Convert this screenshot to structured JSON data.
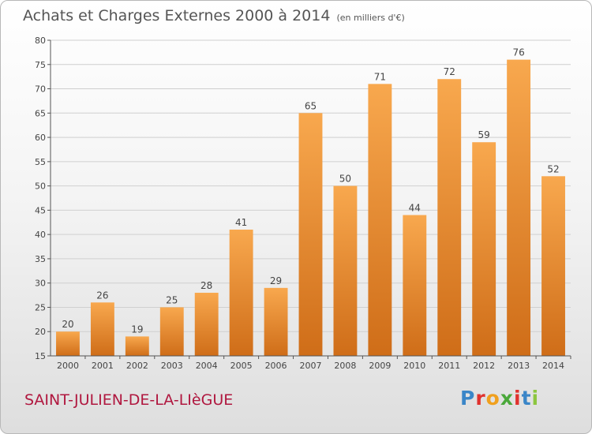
{
  "title": "Achats et Charges Externes 2000 à 2014",
  "unit_note": "(en milliers d'€)",
  "commune": "SAINT-JULIEN-DE-LA-LIèGUE",
  "logo": {
    "letters": [
      "P",
      "r",
      "o",
      "x",
      "i",
      "t",
      "i"
    ],
    "colors": [
      "#3a86c8",
      "#e0322e",
      "#f0a01e",
      "#4aa83a",
      "#e0322e",
      "#3a86c8",
      "#8cc63f"
    ]
  },
  "colors": {
    "bar_light": "#f8a84e",
    "bar_dark": "#cf6d18",
    "grid": "#cfcfcf"
  },
  "chart_data": {
    "type": "bar",
    "title": "Achats et Charges Externes 2000 à 2014",
    "categories": [
      "2000",
      "2001",
      "2002",
      "2003",
      "2004",
      "2005",
      "2006",
      "2007",
      "2008",
      "2009",
      "2010",
      "2011",
      "2012",
      "2013",
      "2014"
    ],
    "values": [
      20,
      26,
      19,
      25,
      28,
      41,
      29,
      65,
      50,
      71,
      44,
      72,
      59,
      76,
      52
    ],
    "ylim": [
      15,
      80
    ],
    "yticks": [
      15,
      20,
      25,
      30,
      35,
      40,
      45,
      50,
      55,
      60,
      65,
      70,
      75,
      80
    ],
    "grid": true,
    "data_labels": true
  }
}
